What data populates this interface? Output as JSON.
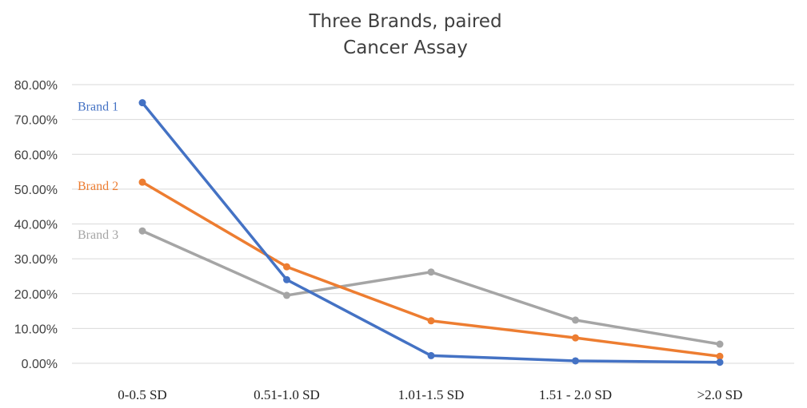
{
  "chart_data": {
    "type": "line",
    "title_lines": [
      "Three Brands, paired",
      "Cancer Assay"
    ],
    "xlabel": "",
    "ylabel": "",
    "categories": [
      "0-0.5 SD",
      "0.51-1.0 SD",
      "1.01-1.5 SD",
      "1.51 - 2.0 SD",
      ">2.0 SD"
    ],
    "y_ticks": [
      "0.00%",
      "10.00%",
      "20.00%",
      "30.00%",
      "40.00%",
      "50.00%",
      "60.00%",
      "70.00%",
      "80.00%"
    ],
    "ylim": [
      0,
      80
    ],
    "y_unit": "percent",
    "grid": true,
    "legend": "none",
    "series": [
      {
        "name": "Brand 1",
        "color": "#4472c4",
        "values": [
          74.8,
          24.0,
          2.2,
          0.7,
          0.3
        ]
      },
      {
        "name": "Brand 2",
        "color": "#ed7d31",
        "values": [
          52.0,
          27.7,
          12.2,
          7.3,
          2.0
        ]
      },
      {
        "name": "Brand 3",
        "color": "#a5a5a5",
        "values": [
          38.0,
          19.5,
          26.2,
          12.4,
          5.5
        ]
      }
    ]
  }
}
